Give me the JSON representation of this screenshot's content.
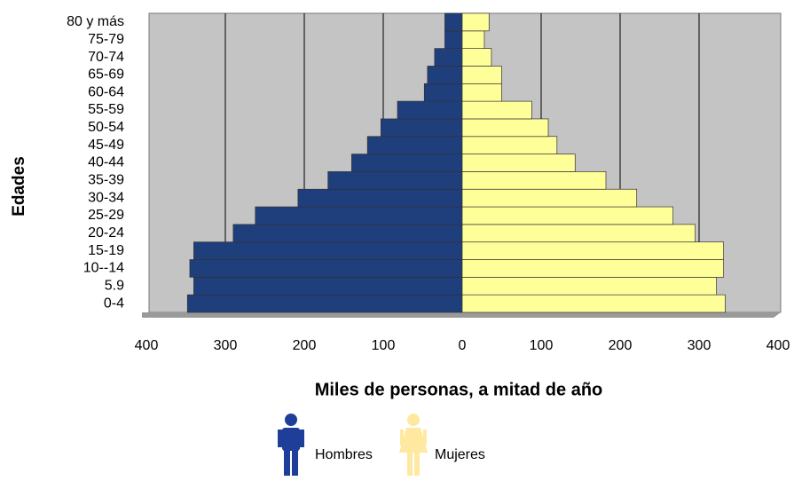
{
  "chart_data": {
    "type": "pyramid",
    "ylabel": "Edades",
    "xlabel": "Miles de personas, a mitad de año",
    "categories": [
      "0-4",
      "5.9",
      "10--14",
      "15-19",
      "20-24",
      "25-29",
      "30-34",
      "35-39",
      "40-44",
      "45-49",
      "50-54",
      "55-59",
      "60-64",
      "65-69",
      "70-74",
      "75-79",
      "80  y más"
    ],
    "series": [
      {
        "name": "Hombres",
        "color": "#1f3e7c",
        "values": [
          348,
          340,
          345,
          340,
          290,
          262,
          208,
          170,
          140,
          120,
          103,
          82,
          48,
          44,
          35,
          22,
          22
        ]
      },
      {
        "name": "Mujeres",
        "color": "#ffff99",
        "values": [
          333,
          322,
          331,
          331,
          295,
          267,
          221,
          182,
          143,
          120,
          109,
          88,
          50,
          50,
          37,
          28,
          34
        ]
      }
    ],
    "xlim": [
      -400,
      400
    ],
    "xticks": [
      {
        "value": -400,
        "label": "400"
      },
      {
        "value": -300,
        "label": "300"
      },
      {
        "value": -200,
        "label": "200"
      },
      {
        "value": -100,
        "label": "100"
      },
      0,
      100,
      200,
      300,
      400
    ],
    "grid": true
  }
}
